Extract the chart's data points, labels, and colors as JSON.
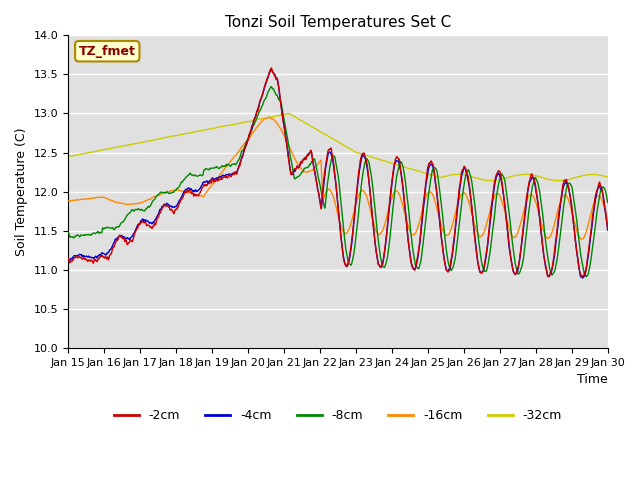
{
  "title": "Tonzi Soil Temperatures Set C",
  "xlabel": "Time",
  "ylabel": "Soil Temperature (C)",
  "ylim": [
    10.0,
    14.0
  ],
  "yticks": [
    10.0,
    10.5,
    11.0,
    11.5,
    12.0,
    12.5,
    13.0,
    13.5,
    14.0
  ],
  "xtick_labels": [
    "Jan 15",
    "Jan 16",
    "Jan 17",
    "Jan 18",
    "Jan 19",
    "Jan 20",
    "Jan 21",
    "Jan 22",
    "Jan 23",
    "Jan 24",
    "Jan 25",
    "Jan 26",
    "Jan 27",
    "Jan 28",
    "Jan 29",
    "Jan 30"
  ],
  "series_colors": [
    "#cc0000",
    "#0000cc",
    "#008800",
    "#ff8800",
    "#cccc00"
  ],
  "series_labels": [
    "-2cm",
    "-4cm",
    "-8cm",
    "-16cm",
    "-32cm"
  ],
  "legend_box_facecolor": "#ffffcc",
  "legend_box_edgecolor": "#aa8800",
  "legend_text": "TZ_fmet",
  "legend_text_color": "#880000",
  "plot_bg_color": "#e0e0e0",
  "grid_color": "#ffffff"
}
